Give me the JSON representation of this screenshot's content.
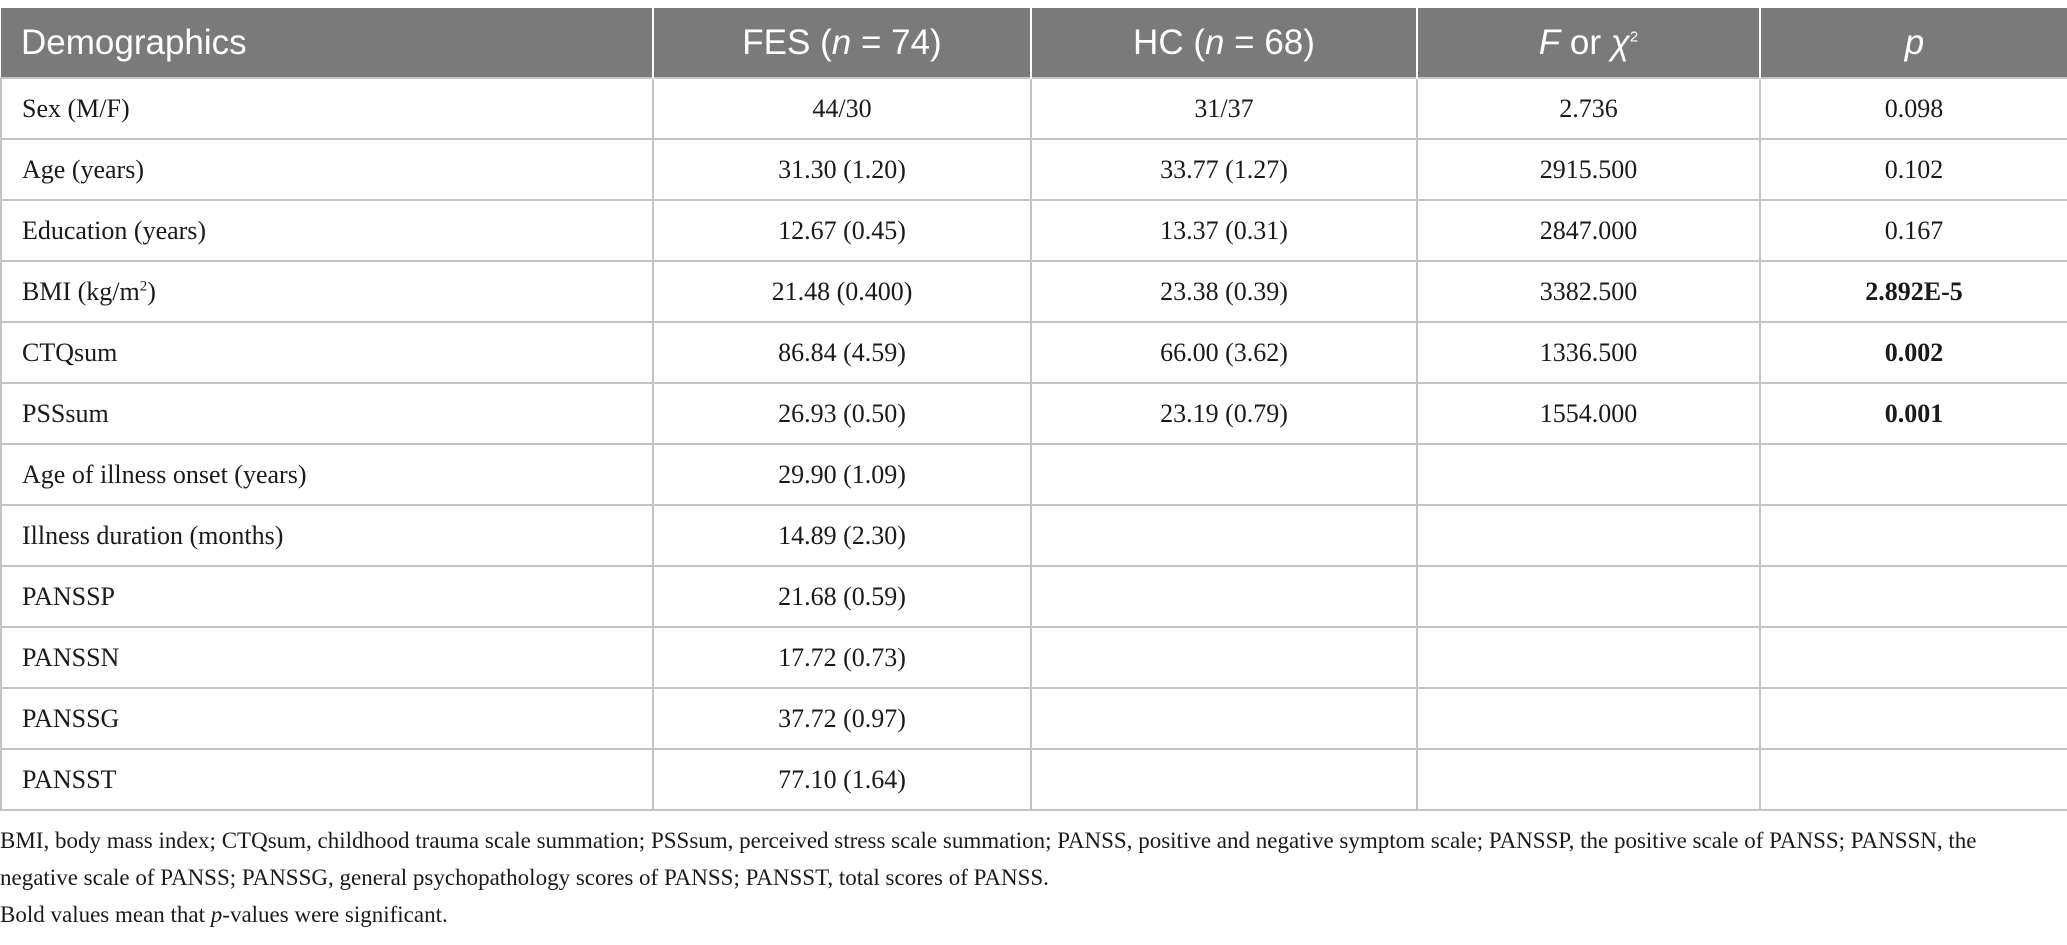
{
  "table": {
    "headers": [
      {
        "prefix": "Demographics",
        "italic": "",
        "suffix": "",
        "sup": ""
      },
      {
        "prefix": "FES (",
        "italic": "n",
        "suffix": " = 74)",
        "sup": ""
      },
      {
        "prefix": "HC (",
        "italic": "n",
        "suffix": " = 68)",
        "sup": ""
      },
      {
        "prefix": "",
        "italic": "F",
        "suffix": " or ",
        "suffix_italic": "χ",
        "sup": "2"
      },
      {
        "prefix": "",
        "italic": "p",
        "suffix": "",
        "sup": ""
      }
    ],
    "rows": [
      {
        "label": "Sex (M/F)",
        "label_sup": "",
        "label_end": "",
        "fes": "44/30",
        "hc": "31/37",
        "stat": "2.736",
        "p": "0.098",
        "p_bold": false
      },
      {
        "label": "Age (years)",
        "label_sup": "",
        "label_end": "",
        "fes": "31.30 (1.20)",
        "hc": "33.77 (1.27)",
        "stat": "2915.500",
        "p": "0.102",
        "p_bold": false
      },
      {
        "label": "Education (years)",
        "label_sup": "",
        "label_end": "",
        "fes": "12.67 (0.45)",
        "hc": "13.37 (0.31)",
        "stat": "2847.000",
        "p": "0.167",
        "p_bold": false
      },
      {
        "label": "BMI (kg/m",
        "label_sup": "2",
        "label_end": ")",
        "fes": "21.48 (0.400)",
        "hc": "23.38 (0.39)",
        "stat": "3382.500",
        "p": "2.892E-5",
        "p_bold": true
      },
      {
        "label": "CTQsum",
        "label_sup": "",
        "label_end": "",
        "fes": "86.84 (4.59)",
        "hc": "66.00 (3.62)",
        "stat": "1336.500",
        "p": "0.002",
        "p_bold": true
      },
      {
        "label": "PSSsum",
        "label_sup": "",
        "label_end": "",
        "fes": "26.93 (0.50)",
        "hc": "23.19 (0.79)",
        "stat": "1554.000",
        "p": "0.001",
        "p_bold": true
      },
      {
        "label": "Age of illness onset (years)",
        "label_sup": "",
        "label_end": "",
        "fes": "29.90 (1.09)",
        "hc": "",
        "stat": "",
        "p": "",
        "p_bold": false
      },
      {
        "label": "Illness duration (months)",
        "label_sup": "",
        "label_end": "",
        "fes": "14.89 (2.30)",
        "hc": "",
        "stat": "",
        "p": "",
        "p_bold": false
      },
      {
        "label": "PANSSP",
        "label_sup": "",
        "label_end": "",
        "fes": "21.68 (0.59)",
        "hc": "",
        "stat": "",
        "p": "",
        "p_bold": false
      },
      {
        "label": "PANSSN",
        "label_sup": "",
        "label_end": "",
        "fes": "17.72 (0.73)",
        "hc": "",
        "stat": "",
        "p": "",
        "p_bold": false
      },
      {
        "label": "PANSSG",
        "label_sup": "",
        "label_end": "",
        "fes": "37.72 (0.97)",
        "hc": "",
        "stat": "",
        "p": "",
        "p_bold": false
      },
      {
        "label": "PANSST",
        "label_sup": "",
        "label_end": "",
        "fes": "77.10 (1.64)",
        "hc": "",
        "stat": "",
        "p": "",
        "p_bold": false
      }
    ]
  },
  "footnotes": {
    "abbreviations": "BMI, body mass index; CTQsum, childhood trauma scale summation; PSSsum, perceived stress scale summation; PANSS, positive and negative symptom scale; PANSSP, the positive scale of PANSS; PANSSN, the negative scale of PANSS; PANSSG, general psychopathology scores of PANSS; PANSST, total scores of PANSS.",
    "bold_note_prefix": "Bold values mean that ",
    "bold_note_italic": "p",
    "bold_note_suffix": "-values were significant."
  },
  "colors": {
    "header_bg": "#7a7a7a",
    "header_text": "#ffffff",
    "grid": "#c4c4c4"
  }
}
